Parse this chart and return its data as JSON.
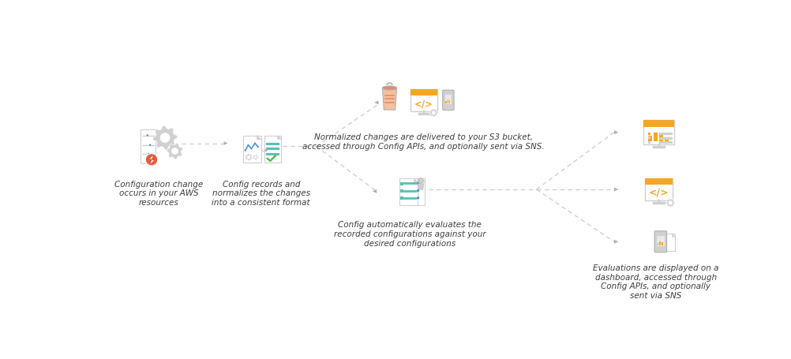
{
  "bg_color": "#ffffff",
  "text_color": "#3d3d3d",
  "orange": "#F5A623",
  "orange_light": "#F7C07A",
  "salmon": "#E8896E",
  "salmon_light": "#F4C19E",
  "gray": "#9B9B9B",
  "gray_light": "#D0D0D0",
  "gray_med": "#B0B0B0",
  "teal": "#5BBFB5",
  "blue": "#4A90D9",
  "green": "#5CB85C",
  "red": "#E74C3C",
  "white": "#ffffff",
  "label1": "Configuration change\noccurs in your AWS\nresources",
  "label2": "Config records and\nnormalizes the changes\ninto a consistent format",
  "label3": "Normalized changes are delivered to your S3 bucket,\naccessed through Config APIs, and optionally sent via SNS.",
  "label4": "Config automatically evaluates the\nrecorded configurations against your\ndesired configurations",
  "label5": "Evaluations are displayed on a\ndashboard, accessed through\nConfig APIs, and optionally\nsent via SNS",
  "font_size": 7.5,
  "figsize": [
    10.03,
    4.56
  ],
  "dpi": 100
}
